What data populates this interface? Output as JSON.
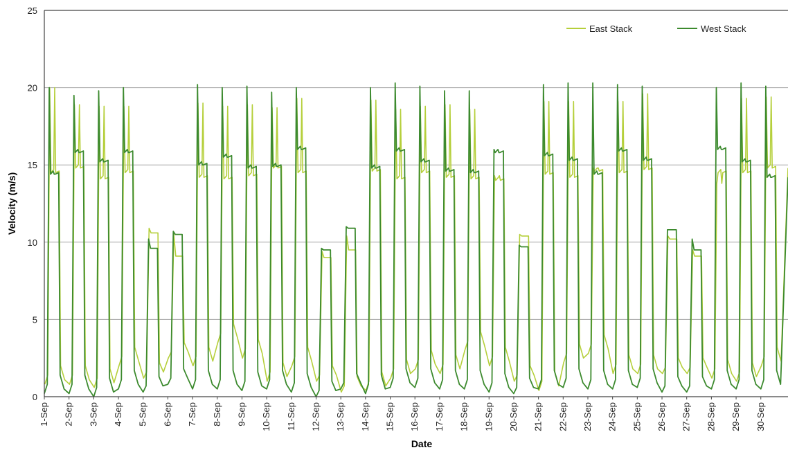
{
  "chart_data": {
    "type": "line",
    "xlabel": "Date",
    "ylabel": "Velocity (m/s)",
    "ylim": [
      0,
      25
    ],
    "yticks": [
      0,
      5,
      10,
      15,
      20,
      25
    ],
    "grid": "horizontal",
    "legend_position": "top-right",
    "categories": [
      "1-Sep",
      "2-Sep",
      "3-Sep",
      "4-Sep",
      "5-Sep",
      "6-Sep",
      "7-Sep",
      "8-Sep",
      "9-Sep",
      "10-Sep",
      "11-Sep",
      "12-Sep",
      "13-Sep",
      "14-Sep",
      "15-Sep",
      "16-Sep",
      "17-Sep",
      "18-Sep",
      "19-Sep",
      "20-Sep",
      "21-Sep",
      "22-Sep",
      "23-Sep",
      "24-Sep",
      "25-Sep",
      "26-Sep",
      "27-Sep",
      "28-Sep",
      "29-Sep",
      "30-Sep"
    ],
    "series": [
      {
        "name": "East Stack",
        "color": "#b5cf3a",
        "daily": [
          {
            "peak": 20.0,
            "plateau": 14.5,
            "night": 0.8
          },
          {
            "peak": 18.9,
            "plateau": 14.8,
            "night": 0.8
          },
          {
            "peak": 18.8,
            "plateau": 14.1,
            "night": 0.6
          },
          {
            "peak": 18.8,
            "plateau": 14.5,
            "night": 2.0
          },
          {
            "peak": 10.9,
            "plateau": 10.6,
            "night": 1.2
          },
          {
            "peak": 10.5,
            "plateau": 9.1,
            "night": 2.5
          },
          {
            "peak": 19.0,
            "plateau": 14.2,
            "night": 2.0
          },
          {
            "peak": 18.8,
            "plateau": 14.1,
            "night": 3.5
          },
          {
            "peak": 18.9,
            "plateau": 14.3,
            "night": 2.5
          },
          {
            "peak": 18.7,
            "plateau": 14.8,
            "night": 1.0
          },
          {
            "peak": 19.3,
            "plateau": 14.5,
            "night": 2.0
          },
          {
            "peak": 9.4,
            "plateau": 9.0,
            "night": 1.0
          },
          {
            "peak": 10.4,
            "plateau": 9.5,
            "night": 0.3
          },
          {
            "peak": 19.2,
            "plateau": 14.6,
            "night": 0.4
          },
          {
            "peak": 18.6,
            "plateau": 14.1,
            "night": 1.2
          },
          {
            "peak": 18.8,
            "plateau": 14.5,
            "night": 1.8
          },
          {
            "peak": 18.9,
            "plateau": 14.2,
            "night": 1.5
          },
          {
            "peak": 18.6,
            "plateau": 14.1,
            "night": 3.0
          },
          {
            "peak": 14.3,
            "plateau": 14.0,
            "night": 2.0
          },
          {
            "peak": 10.5,
            "plateau": 10.4,
            "night": 1.0
          },
          {
            "peak": 19.1,
            "plateau": 14.4,
            "night": 0.4
          },
          {
            "peak": 19.1,
            "plateau": 14.2,
            "night": 2.2
          },
          {
            "peak": 14.8,
            "plateau": 14.6,
            "night": 2.8
          },
          {
            "peak": 19.1,
            "plateau": 14.5,
            "night": 1.5
          },
          {
            "peak": 19.6,
            "plateau": 14.7,
            "night": 1.5
          },
          {
            "peak": 10.4,
            "plateau": 10.2,
            "night": 1.5
          },
          {
            "peak": 9.5,
            "plateau": 9.1,
            "night": 1.5
          },
          {
            "peak": 13.8,
            "plateau": 14.5,
            "night": 1.2
          },
          {
            "peak": 19.3,
            "plateau": 14.5,
            "night": 1.0
          },
          {
            "peak": 19.4,
            "plateau": 14.8,
            "night": 2.0
          }
        ]
      },
      {
        "name": "West Stack",
        "color": "#3c8a2e",
        "daily": [
          {
            "peak": 20.0,
            "plateau": 14.4,
            "night": 0.2
          },
          {
            "peak": 19.5,
            "plateau": 15.8,
            "night": 0.2
          },
          {
            "peak": 19.8,
            "plateau": 15.2,
            "night": 0.0
          },
          {
            "peak": 20.0,
            "plateau": 15.8,
            "night": 0.5
          },
          {
            "peak": 10.2,
            "plateau": 9.6,
            "night": 0.3
          },
          {
            "peak": 10.7,
            "plateau": 10.5,
            "night": 0.8
          },
          {
            "peak": 20.2,
            "plateau": 15.0,
            "night": 0.5
          },
          {
            "peak": 20.0,
            "plateau": 15.5,
            "night": 0.5
          },
          {
            "peak": 20.1,
            "plateau": 14.8,
            "night": 0.4
          },
          {
            "peak": 19.7,
            "plateau": 14.9,
            "night": 0.5
          },
          {
            "peak": 20.0,
            "plateau": 16.0,
            "night": 0.3
          },
          {
            "peak": 9.6,
            "plateau": 9.5,
            "night": 0.0
          },
          {
            "peak": 11.0,
            "plateau": 10.9,
            "night": 0.5
          },
          {
            "peak": 20.0,
            "plateau": 14.8,
            "night": 0.2
          },
          {
            "peak": 20.3,
            "plateau": 15.9,
            "night": 0.6
          },
          {
            "peak": 20.1,
            "plateau": 15.2,
            "night": 0.6
          },
          {
            "peak": 19.8,
            "plateau": 14.6,
            "night": 0.5
          },
          {
            "peak": 19.8,
            "plateau": 14.5,
            "night": 0.5
          },
          {
            "peak": 16.0,
            "plateau": 15.8,
            "night": 0.3
          },
          {
            "peak": 9.8,
            "plateau": 9.7,
            "night": 0.2
          },
          {
            "peak": 20.2,
            "plateau": 15.6,
            "night": 0.5
          },
          {
            "peak": 20.3,
            "plateau": 15.3,
            "night": 0.6
          },
          {
            "peak": 20.3,
            "plateau": 14.4,
            "night": 0.5
          },
          {
            "peak": 20.2,
            "plateau": 15.9,
            "night": 0.5
          },
          {
            "peak": 20.1,
            "plateau": 15.3,
            "night": 0.6
          },
          {
            "peak": 10.8,
            "plateau": 10.8,
            "night": 0.3
          },
          {
            "peak": 10.2,
            "plateau": 9.5,
            "night": 0.3
          },
          {
            "peak": 20.0,
            "plateau": 16.0,
            "night": 0.5
          },
          {
            "peak": 20.3,
            "plateau": 15.2,
            "night": 0.5
          },
          {
            "peak": 20.1,
            "plateau": 14.2,
            "night": 0.5
          }
        ]
      }
    ]
  }
}
